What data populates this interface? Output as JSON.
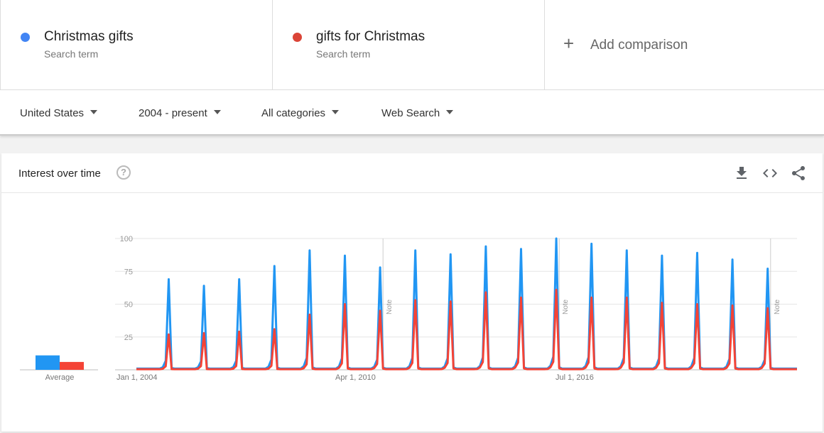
{
  "terms": [
    {
      "name": "Christmas gifts",
      "sub": "Search term",
      "color": "#4285f4"
    },
    {
      "name": "gifts for Christmas",
      "sub": "Search term",
      "color": "#db4437"
    }
  ],
  "add_comparison": {
    "icon": "plus-icon",
    "label": "Add comparison"
  },
  "filters": {
    "region": "United States",
    "time": "2004 - present",
    "category": "All categories",
    "property": "Web Search"
  },
  "card": {
    "title": "Interest over time",
    "tools": [
      "download-icon",
      "embed-code-icon",
      "share-icon"
    ]
  },
  "chart_data": {
    "type": "line",
    "x_start": "2004-01",
    "x_end": "2022-10",
    "x_step": "month",
    "x_ticks": [
      "Jan 1, 2004",
      "Apr 1, 2010",
      "Jul 1, 2016"
    ],
    "y_ticks": [
      100,
      75,
      50,
      25
    ],
    "ylim": [
      0,
      100
    ],
    "notes": [
      {
        "date": "2011-01",
        "label": "Note"
      },
      {
        "date": "2016-01",
        "label": "Note"
      },
      {
        "date": "2022-01",
        "label": "Note"
      }
    ],
    "average_label": "Average",
    "average_values": {
      "Christmas gifts": 11,
      "gifts for Christmas": 6
    },
    "series": [
      {
        "term": "Christmas gifts",
        "color": "#2196f3",
        "peaks": [
          {
            "year": 2004,
            "value": 69
          },
          {
            "year": 2005,
            "value": 64
          },
          {
            "year": 2006,
            "value": 69
          },
          {
            "year": 2007,
            "value": 79
          },
          {
            "year": 2008,
            "value": 91
          },
          {
            "year": 2009,
            "value": 87
          },
          {
            "year": 2010,
            "value": 78
          },
          {
            "year": 2011,
            "value": 91
          },
          {
            "year": 2012,
            "value": 88
          },
          {
            "year": 2013,
            "value": 94
          },
          {
            "year": 2014,
            "value": 92
          },
          {
            "year": 2015,
            "value": 100
          },
          {
            "year": 2016,
            "value": 96
          },
          {
            "year": 2017,
            "value": 91
          },
          {
            "year": 2018,
            "value": 87
          },
          {
            "year": 2019,
            "value": 89
          },
          {
            "year": 2020,
            "value": 84
          },
          {
            "year": 2021,
            "value": 77
          }
        ]
      },
      {
        "term": "gifts for Christmas",
        "color": "#f44336",
        "peaks": [
          {
            "year": 2004,
            "value": 27
          },
          {
            "year": 2005,
            "value": 28
          },
          {
            "year": 2006,
            "value": 29
          },
          {
            "year": 2007,
            "value": 31
          },
          {
            "year": 2008,
            "value": 42
          },
          {
            "year": 2009,
            "value": 50
          },
          {
            "year": 2010,
            "value": 45
          },
          {
            "year": 2011,
            "value": 53
          },
          {
            "year": 2012,
            "value": 52
          },
          {
            "year": 2013,
            "value": 59
          },
          {
            "year": 2014,
            "value": 55
          },
          {
            "year": 2015,
            "value": 61
          },
          {
            "year": 2016,
            "value": 55
          },
          {
            "year": 2017,
            "value": 55
          },
          {
            "year": 2018,
            "value": 51
          },
          {
            "year": 2019,
            "value": 50
          },
          {
            "year": 2020,
            "value": 49
          },
          {
            "year": 2021,
            "value": 47
          }
        ]
      }
    ]
  }
}
